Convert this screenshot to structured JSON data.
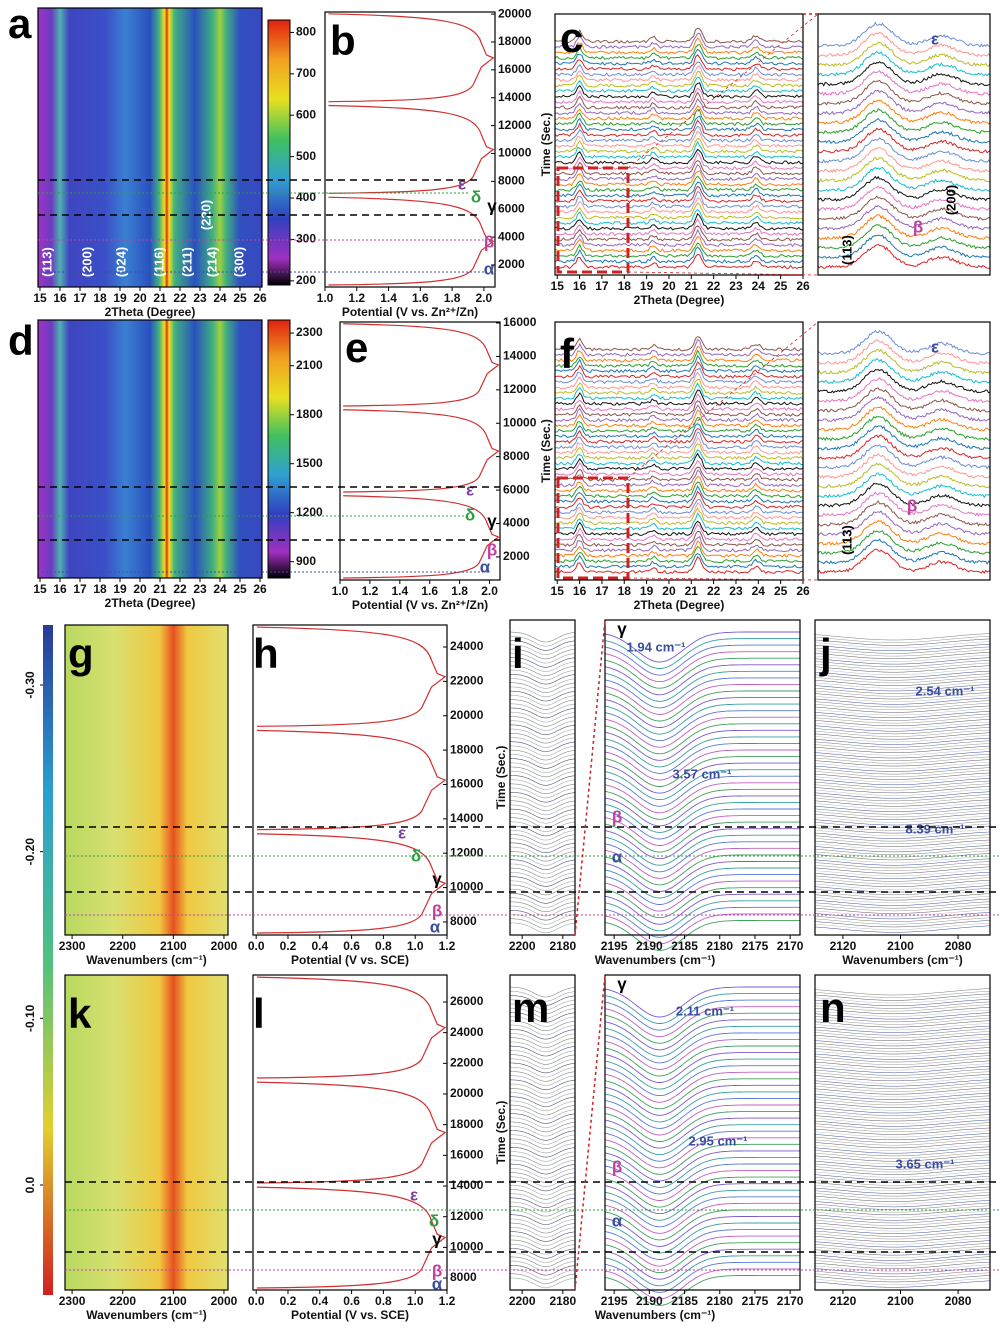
{
  "panels": [
    {
      "label": "a",
      "type": "heatmap",
      "colormap": "xrd",
      "xlim": [
        14.9,
        26.1
      ],
      "xticks": [
        15,
        16,
        17,
        18,
        19,
        20,
        21,
        22,
        23,
        24,
        25,
        26
      ],
      "xlabel": "2Theta (Degree)",
      "annotations": [
        {
          "text": "(113)",
          "color": "#ffffff"
        },
        {
          "text": "(200)",
          "color": "#ffffff"
        },
        {
          "text": "(024)",
          "color": "#ffffff"
        },
        {
          "text": "(116)",
          "color": "#ffffff"
        },
        {
          "text": "(211)",
          "color": "#ffffff"
        },
        {
          "text": "(214)",
          "color": "#ffffff"
        },
        {
          "text": "(300)",
          "color": "#ffffff"
        },
        {
          "text": "(220)",
          "color": "#ffffff"
        }
      ]
    },
    {
      "label": "b",
      "type": "potential",
      "xlim": [
        1.0,
        2.07
      ],
      "xticks": [
        {
          "value": 1.0,
          "label": "1.0"
        },
        {
          "value": 1.2,
          "label": "1.2"
        },
        {
          "value": 1.4,
          "label": "1.4"
        },
        {
          "value": 1.6,
          "label": "1.6"
        },
        {
          "value": 1.8,
          "label": "1.8"
        },
        {
          "value": 2.0,
          "label": "2.0"
        }
      ],
      "xlabel": "Potential (V vs. Zn²⁺/Zn)",
      "ylim": [
        420,
        20150
      ],
      "yticks": [
        2000,
        4000,
        6000,
        8000,
        10000,
        12000,
        14000,
        16000,
        18000,
        20000
      ],
      "annotations": [
        {
          "text": "ε",
          "color": "#7b3f9e"
        },
        {
          "text": "δ",
          "color": "#2e9e3e"
        },
        {
          "text": "γ",
          "color": "#000000"
        },
        {
          "text": "β",
          "color": "#c040a0"
        },
        {
          "text": "α",
          "color": "#3a4ea0"
        }
      ]
    },
    {
      "label": "c",
      "type": "spectra",
      "xlim": [
        14.9,
        26.0
      ],
      "xticks": [
        15,
        16,
        17,
        18,
        19,
        20,
        21,
        22,
        23,
        24,
        25,
        26
      ],
      "xlabel": "2Theta (Degree)",
      "ylabel": "Time (Sec.)"
    },
    {
      "type": "inset",
      "annotations": [
        {
          "text": "ε",
          "color": "#3a4ea0"
        },
        {
          "text": "(113)",
          "color": "#000000"
        },
        {
          "text": "(200)",
          "color": "#000000"
        },
        {
          "text": "β",
          "color": "#c040a0"
        }
      ]
    },
    {
      "label": "d",
      "type": "heatmap",
      "colormap": "xrd",
      "xlim": [
        14.9,
        26.1
      ],
      "xticks": [
        15,
        16,
        17,
        18,
        19,
        20,
        21,
        22,
        23,
        24,
        25,
        26
      ],
      "xlabel": "2Theta (Degree)"
    },
    {
      "label": "e",
      "type": "potential",
      "xlim": [
        1.0,
        2.07
      ],
      "xticks": [
        {
          "value": 1.0,
          "label": "1.0"
        },
        {
          "value": 1.2,
          "label": "1.2"
        },
        {
          "value": 1.4,
          "label": "1.4"
        },
        {
          "value": 1.6,
          "label": "1.6"
        },
        {
          "value": 1.8,
          "label": "1.8"
        },
        {
          "value": 2.0,
          "label": "2.0"
        }
      ],
      "xlabel": "Potential (V vs. Zn²⁺/Zn)",
      "ylim": [
        620,
        16060
      ],
      "yticks": [
        2000,
        4000,
        6000,
        8000,
        10000,
        12000,
        14000,
        16000
      ],
      "annotations": [
        {
          "text": "ε",
          "color": "#7b3f9e"
        },
        {
          "text": "δ",
          "color": "#2e9e3e"
        },
        {
          "text": "γ",
          "color": "#000000"
        },
        {
          "text": "β",
          "color": "#c040a0"
        },
        {
          "text": "α",
          "color": "#3a4ea0"
        }
      ]
    },
    {
      "label": "f",
      "type": "spectra",
      "xlim": [
        14.9,
        26.0
      ],
      "xticks": [
        15,
        16,
        17,
        18,
        19,
        20,
        21,
        22,
        23,
        24,
        25,
        26
      ],
      "xlabel": "2Theta (Degree)",
      "ylabel": "Time (Sec.)"
    },
    {
      "type": "inset",
      "annotations": [
        {
          "text": "ε",
          "color": "#3a4ea0"
        },
        {
          "text": "(113)",
          "color": "#000000"
        },
        {
          "text": "β",
          "color": "#c040a0"
        }
      ]
    },
    {
      "label": "g",
      "type": "heatmap",
      "colormap": "ir",
      "xlim": [
        2314,
        1992
      ],
      "xticks": [
        2300,
        2200,
        2100,
        2000
      ],
      "xlabel": "Wavenumbers (cm⁻¹)"
    },
    {
      "label": "h",
      "type": "potential",
      "xlim": [
        -0.02,
        1.2
      ],
      "xticks": [
        {
          "value": 0.0,
          "label": "0.0"
        },
        {
          "value": 0.2,
          "label": "0.2"
        },
        {
          "value": 0.4,
          "label": "0.4"
        },
        {
          "value": 0.6,
          "label": "0.6"
        },
        {
          "value": 0.8,
          "label": "0.8"
        },
        {
          "value": 1.0,
          "label": "1.0"
        },
        {
          "value": 1.2,
          "label": "1.2"
        }
      ],
      "xlabel": "Potential (V vs. SCE)",
      "ylim": [
        7240,
        25280
      ],
      "yticks": [
        8000,
        10000,
        12000,
        14000,
        16000,
        18000,
        20000,
        22000,
        24000
      ],
      "annotations": [
        {
          "text": "ε",
          "color": "#7b3f9e"
        },
        {
          "text": "δ",
          "color": "#2e9e3e"
        },
        {
          "text": "γ",
          "color": "#000000"
        },
        {
          "text": "β",
          "color": "#c040a0"
        },
        {
          "text": "α",
          "color": "#3a4ea0"
        }
      ]
    },
    {
      "label": "i",
      "type": "ir-stack",
      "xlim": [
        2206,
        2174
      ],
      "xticks": [
        2200,
        2180
      ],
      "xlabel": "Wavenumbers (cm⁻¹)",
      "ylabel": "Time (Sec.)"
    },
    {
      "type": "ir-zoom",
      "xlim": [
        2196.3,
        2168.6
      ],
      "xticks": [
        2195,
        2190,
        2185,
        2180,
        2175,
        2170
      ],
      "annotations": [
        {
          "text": "γ",
          "color": "#000000"
        },
        {
          "text": "1.94 cm⁻¹",
          "color": "#3a4ea0"
        },
        {
          "text": "3.57 cm⁻¹",
          "color": "#3a4ea0"
        },
        {
          "text": "β",
          "color": "#c040a0"
        },
        {
          "text": "α",
          "color": "#3a4ea0"
        }
      ]
    },
    {
      "label": "j",
      "type": "ir-dense",
      "xlim": [
        2129.7,
        2068.9
      ],
      "xticks": [
        2120,
        2100,
        2080
      ],
      "xlabel": "Wavenumbers (cm⁻¹)",
      "annotations": [
        {
          "text": "2.54 cm⁻¹",
          "color": "#3a4ea0"
        },
        {
          "text": "8.39 cm⁻¹",
          "color": "#3a4ea0"
        }
      ]
    },
    {
      "label": "k",
      "type": "heatmap",
      "colormap": "ir",
      "xlim": [
        2314,
        1992
      ],
      "xticks": [
        2300,
        2200,
        2100,
        2000
      ],
      "xlabel": "Wavenumbers (cm⁻¹)"
    },
    {
      "label": "l",
      "type": "potential",
      "xlim": [
        -0.02,
        1.2
      ],
      "xticks": [
        {
          "value": 0.0,
          "label": "0.0"
        },
        {
          "value": 0.2,
          "label": "0.2"
        },
        {
          "value": 0.4,
          "label": "0.4"
        },
        {
          "value": 0.6,
          "label": "0.6"
        },
        {
          "value": 0.8,
          "label": "0.8"
        },
        {
          "value": 1.0,
          "label": "1.0"
        },
        {
          "value": 1.2,
          "label": "1.2"
        }
      ],
      "xlabel": "Potential (V vs. SCE)",
      "ylim": [
        7220,
        27760
      ],
      "yticks": [
        8000,
        10000,
        12000,
        14000,
        16000,
        18000,
        20000,
        22000,
        24000,
        26000
      ],
      "annotations": [
        {
          "text": "ε",
          "color": "#7b3f9e"
        },
        {
          "text": "δ",
          "color": "#2e9e3e"
        },
        {
          "text": "γ",
          "color": "#000000"
        },
        {
          "text": "β",
          "color": "#c040a0"
        },
        {
          "text": "α",
          "color": "#3a4ea0"
        }
      ]
    },
    {
      "label": "m",
      "type": "ir-stack",
      "xlim": [
        2206,
        2174
      ],
      "xticks": [
        2200,
        2180
      ],
      "xlabel": "Wavenumbers (cm⁻¹)",
      "ylabel": "Time (Sec.)"
    },
    {
      "type": "ir-zoom",
      "xlim": [
        2196.3,
        2168.6
      ],
      "xticks": [
        2195,
        2190,
        2185,
        2180,
        2175,
        2170
      ],
      "annotations": [
        {
          "text": "γ",
          "color": "#000000"
        },
        {
          "text": "2.11 cm⁻¹",
          "color": "#3a4ea0"
        },
        {
          "text": "2.95 cm⁻¹",
          "color": "#3a4ea0"
        },
        {
          "text": "β",
          "color": "#c040a0"
        },
        {
          "text": "α",
          "color": "#3a4ea0"
        }
      ]
    },
    {
      "label": "n",
      "type": "ir-dense",
      "xlim": [
        2129.7,
        2068.9
      ],
      "xticks": [
        2120,
        2100,
        2080
      ],
      "annotations": [
        {
          "text": "3.65 cm⁻¹",
          "color": "#3a4ea0"
        }
      ]
    }
  ],
  "colorbars": [
    {
      "lim": [
        190,
        830
      ],
      "ticks": [
        200,
        300,
        400,
        500,
        600,
        700,
        800
      ]
    },
    {
      "lim": [
        800,
        2380
      ],
      "ticks": [
        900,
        1200,
        1500,
        1800,
        2100,
        2300
      ]
    },
    {
      "lim": [
        -0.336,
        0.066
      ],
      "ticks": [
        {
          "value": -0.3,
          "label": "-0.30"
        },
        {
          "value": -0.2,
          "label": "-0.20"
        },
        {
          "value": -0.1,
          "label": "-0.10"
        },
        {
          "value": 0.0,
          "label": "0.0"
        }
      ]
    }
  ]
}
